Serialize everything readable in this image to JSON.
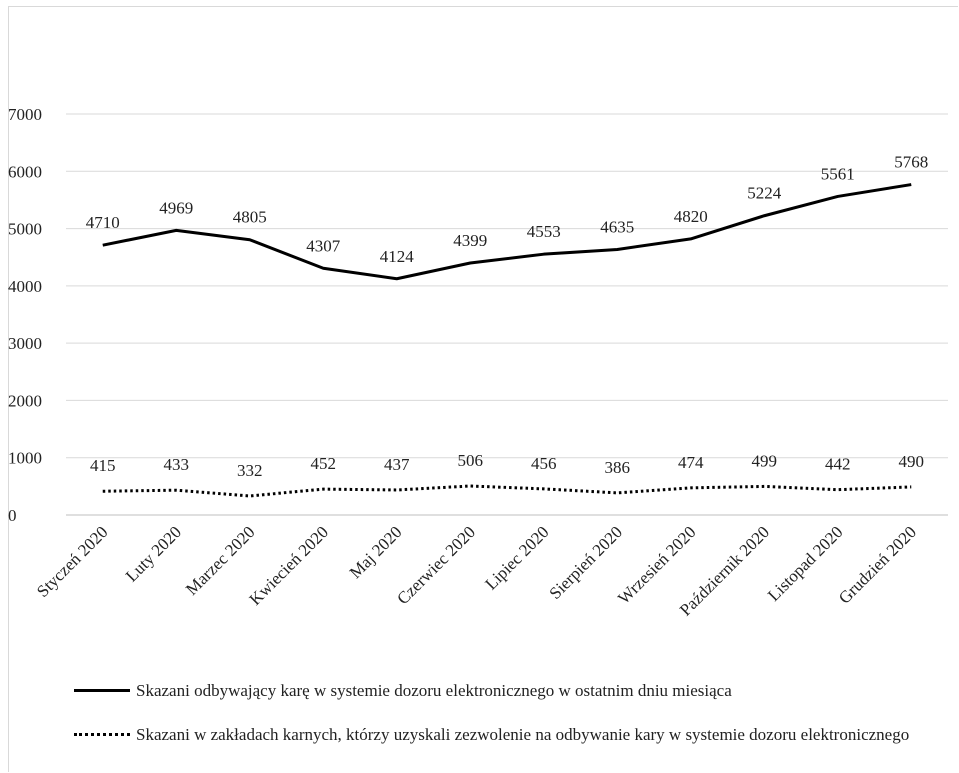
{
  "chart_data": {
    "type": "line",
    "categories": [
      "Styczeń 2020",
      "Luty 2020",
      "Marzec 2020",
      "Kwiecień 2020",
      "Maj 2020",
      "Czerwiec 2020",
      "Lipiec 2020",
      "Sierpień 2020",
      "Wrzesień 2020",
      "Październik 2020",
      "Listopad 2020",
      "Grudzień 2020"
    ],
    "series": [
      {
        "name": "Skazani odbywający karę w systemie dozoru elektronicznego w ostatnim dniu miesiąca",
        "values": [
          4710,
          4969,
          4805,
          4307,
          4124,
          4399,
          4553,
          4635,
          4820,
          5224,
          5561,
          5768
        ],
        "style": "solid",
        "color": "#000000"
      },
      {
        "name": "Skazani w zakładach karnych, którzy uzyskali zezwolenie na odbywanie kary w systemie dozoru elektronicznego",
        "values": [
          415,
          433,
          332,
          452,
          437,
          506,
          456,
          386,
          474,
          499,
          442,
          490
        ],
        "style": "dotted",
        "color": "#000000"
      }
    ],
    "yticks": [
      "0",
      "1000",
      "2000",
      "3000",
      "4000",
      "5000",
      "6000",
      "7000"
    ],
    "ylim": [
      0,
      7000
    ],
    "grid": true,
    "legend_position": "bottom"
  }
}
